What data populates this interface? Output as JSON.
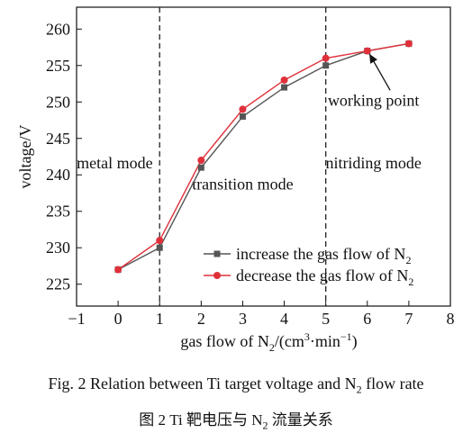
{
  "chart_data": {
    "type": "line",
    "x": [
      0,
      1,
      2,
      3,
      4,
      5,
      6,
      7
    ],
    "series": [
      {
        "name": "increase the gas flow of N",
        "name_sub": "2",
        "color": "#555555",
        "marker": "square",
        "values": [
          227,
          230,
          241,
          248,
          252,
          255,
          257,
          258
        ]
      },
      {
        "name": "decrease the gas flow of N",
        "name_sub": "2",
        "color": "#e0303a",
        "marker": "circle",
        "values": [
          227,
          231,
          242,
          249,
          253,
          256,
          257,
          258
        ]
      }
    ],
    "xlim": [
      -1,
      8
    ],
    "ylim": [
      222,
      263
    ],
    "xticks": [
      -1,
      0,
      1,
      2,
      3,
      4,
      5,
      6,
      7,
      8
    ],
    "yticks": [
      225,
      230,
      235,
      240,
      245,
      250,
      255,
      260
    ],
    "xlabel": {
      "before": "gas flow of N",
      "sub": "2",
      "after": "/(cm",
      "sup1": "3",
      "mid": "·min",
      "sup2": "−1",
      "end": ")"
    },
    "ylabel": "voltage/V",
    "vlines": [
      1,
      5
    ],
    "annotations": {
      "metal_mode": "metal mode",
      "transition_mode": "transition mode",
      "nitriding_mode": "nitriding mode",
      "working_point": "working point"
    },
    "legend_position": "lower-right",
    "grid": false
  },
  "captions": {
    "english": {
      "before": "Fig. 2    Relation between Ti target voltage and N",
      "sub": "2",
      "after": " flow rate"
    },
    "chinese": {
      "before": "图 2    Ti 靶电压与 N",
      "sub": "2",
      "after": " 流量关系"
    }
  }
}
